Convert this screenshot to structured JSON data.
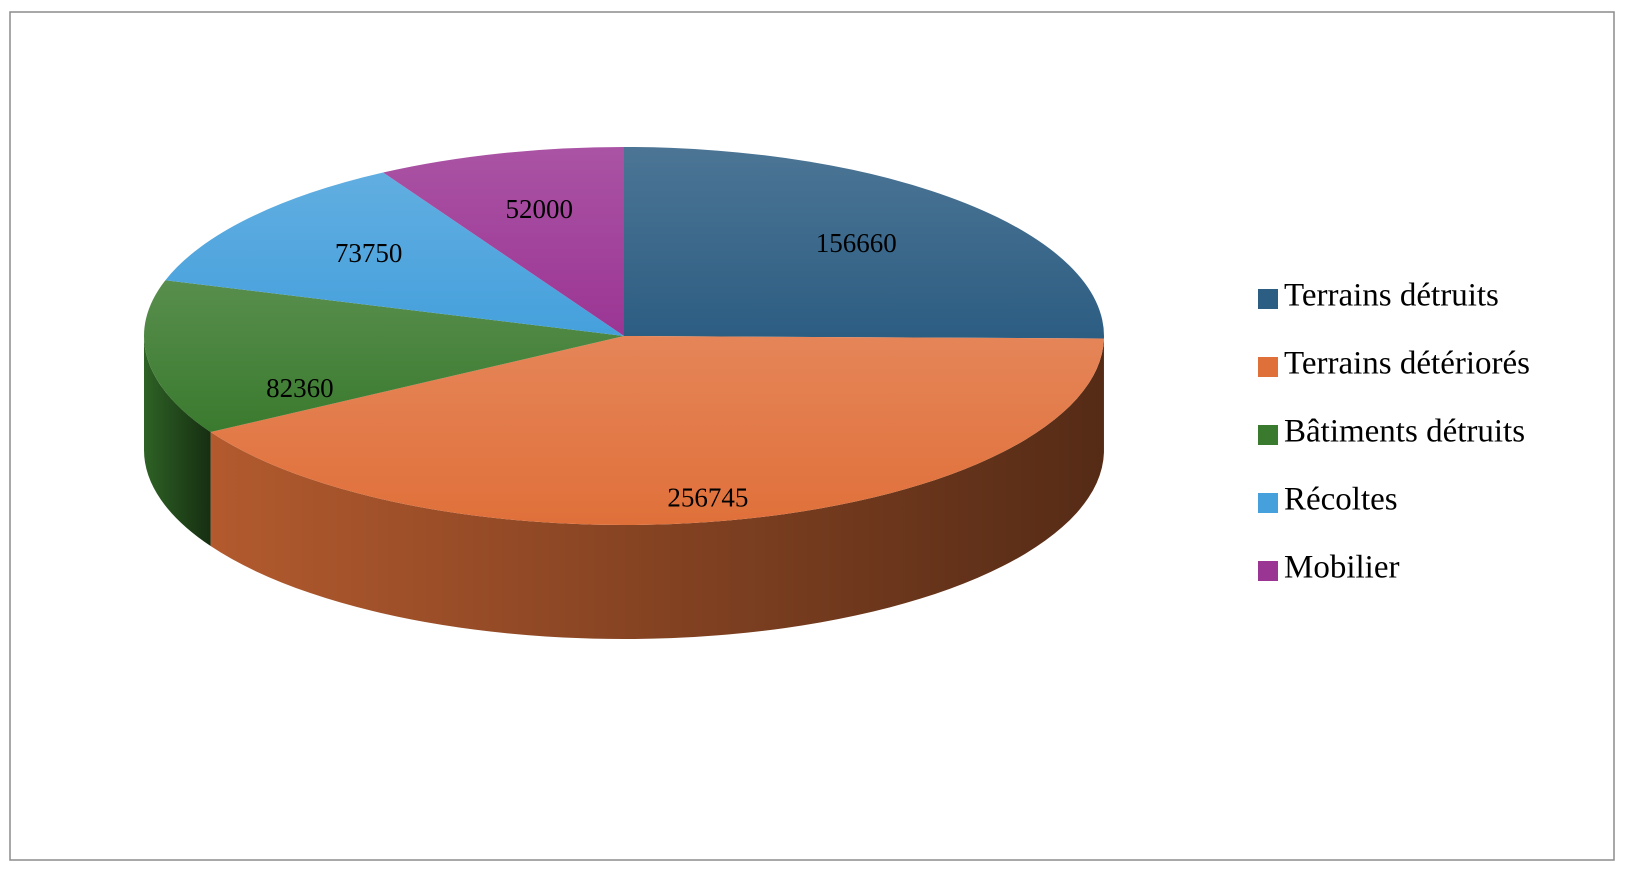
{
  "chart_data": {
    "type": "pie3d",
    "categories": [
      "Terrains détruits",
      "Terrains détériorés",
      "Bâtiments détruits",
      "Récoltes",
      "Mobilier"
    ],
    "values": [
      156660,
      256745,
      82360,
      73750,
      52000
    ],
    "colors": [
      "#2c5d82",
      "#e0703a",
      "#3a7a2e",
      "#45a0dc",
      "#9b3594"
    ],
    "legend": "right",
    "data_labels": true
  }
}
